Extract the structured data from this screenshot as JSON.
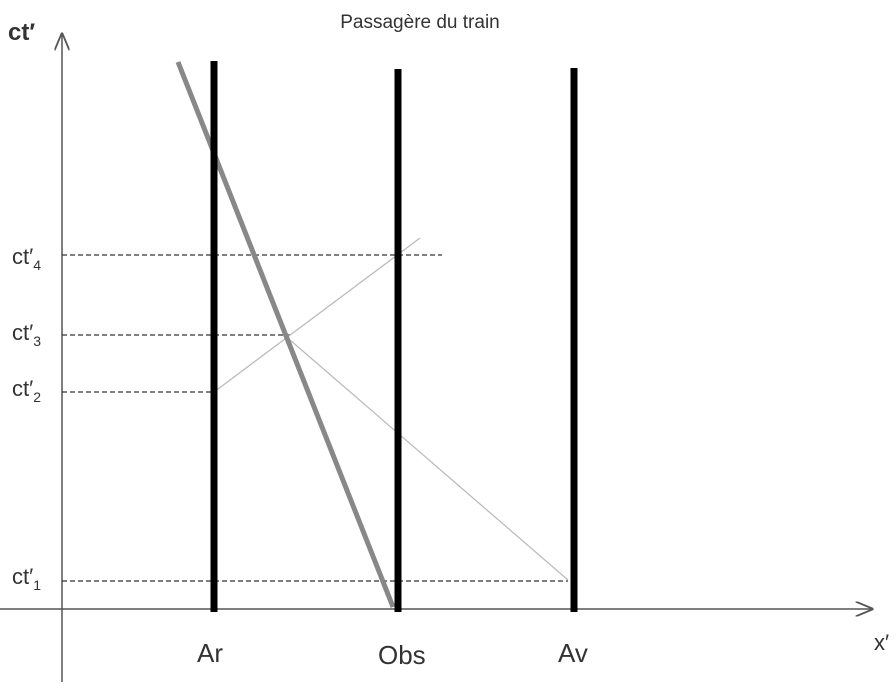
{
  "title": "Passagère du train",
  "axes": {
    "vertical": "ct′",
    "horizontal": "x′"
  },
  "times": [
    {
      "base": "ct′",
      "sub": "4"
    },
    {
      "base": "ct′",
      "sub": "3"
    },
    {
      "base": "ct′",
      "sub": "2"
    },
    {
      "base": "ct′",
      "sub": "1"
    }
  ],
  "worldlines": [
    "Ar",
    "Obs",
    "Av"
  ]
}
